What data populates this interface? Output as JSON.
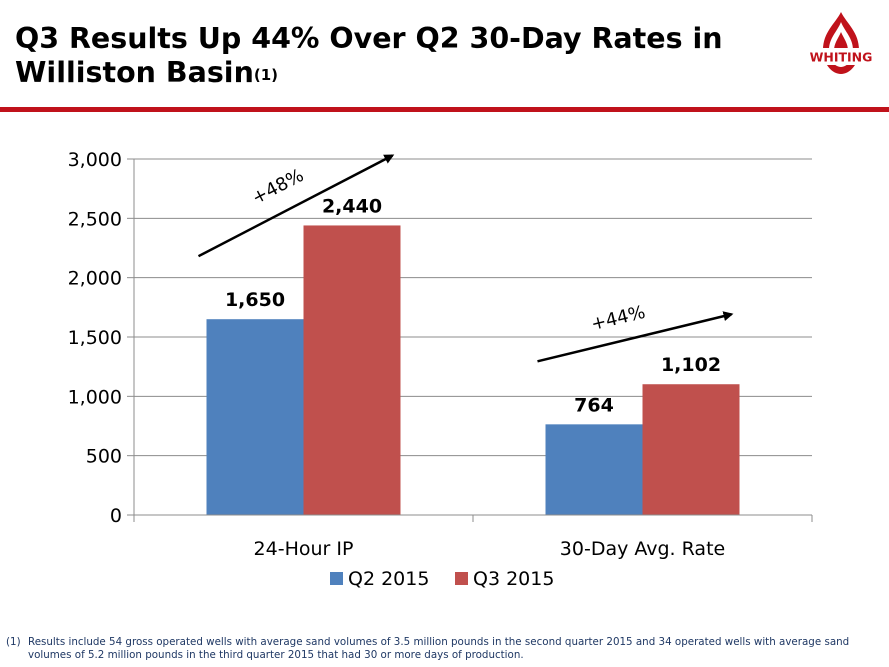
{
  "page": {
    "title_line1": "Q3 Results Up 44% Over Q2 30-Day Rates in",
    "title_line2": "Williston Basin",
    "title_superscript": "(1)",
    "logo_text": "WHITING",
    "accent_color": "#c0121b"
  },
  "chart_data": {
    "type": "bar",
    "categories": [
      "24-Hour IP",
      "30-Day Avg. Rate"
    ],
    "series": [
      {
        "name": "Q2 2015",
        "values": [
          1650,
          764
        ],
        "color": "#4f81bd"
      },
      {
        "name": "Q3 2015",
        "values": [
          2440,
          1102
        ],
        "color": "#c0504d"
      }
    ],
    "data_labels": [
      [
        "1,650",
        "764"
      ],
      [
        "2,440",
        "1,102"
      ]
    ],
    "y_ticks": [
      "0",
      "500",
      "1,000",
      "1,500",
      "2,000",
      "2,500",
      "3,000"
    ],
    "y_tick_values": [
      0,
      500,
      1000,
      1500,
      2000,
      2500,
      3000
    ],
    "ylim": [
      0,
      3000
    ],
    "grid": true,
    "legend_position": "bottom",
    "annotations": [
      {
        "text": "+48%",
        "category": "24-Hour IP"
      },
      {
        "text": "+44%",
        "category": "30-Day Avg. Rate"
      }
    ]
  },
  "footnote": {
    "number": "(1)",
    "text": "Results include 54 gross operated wells with average sand volumes of 3.5 million pounds in the second quarter 2015 and 34 operated wells with average sand volumes of 5.2 million pounds in the third quarter 2015 that had 30 or more days of production."
  }
}
